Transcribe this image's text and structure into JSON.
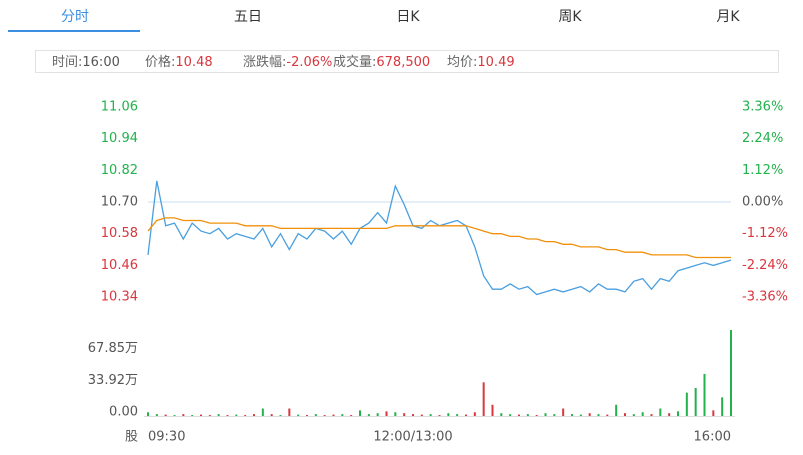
{
  "tabs": [
    "分时",
    "五日",
    "日K",
    "周K",
    "月K"
  ],
  "info": [
    {
      "label": "时间:",
      "value": "16:00"
    },
    {
      "label": "价格:",
      "value": "10.48"
    },
    {
      "label": "涨跌幅:",
      "value": "-2.06%"
    },
    {
      "label": "成交量:",
      "value": "678,500"
    },
    {
      "label": "均价:",
      "value": "10.49"
    }
  ],
  "chart_data": [
    {
      "type": "line",
      "series": [
        {
          "color": "#4a9fe0",
          "values": [
            10.5,
            10.78,
            10.61,
            10.62,
            10.56,
            10.62,
            10.59,
            10.58,
            10.6,
            10.56,
            10.58,
            10.57,
            10.56,
            10.6,
            10.53,
            10.58,
            10.52,
            10.58,
            10.56,
            10.6,
            10.59,
            10.56,
            10.59,
            10.54,
            10.6,
            10.62,
            10.66,
            10.62,
            10.76,
            10.69,
            10.61,
            10.6,
            10.63,
            10.61,
            10.62,
            10.63,
            10.61,
            10.53,
            10.42,
            10.37,
            10.37,
            10.39,
            10.37,
            10.38,
            10.35,
            10.36,
            10.37,
            10.36,
            10.37,
            10.38,
            10.36,
            10.39,
            10.37,
            10.37,
            10.36,
            10.4,
            10.41,
            10.37,
            10.41,
            10.4,
            10.44,
            10.45,
            10.46,
            10.47,
            10.46,
            10.47,
            10.48
          ]
        },
        {
          "color": "#f0900a",
          "values": [
            10.59,
            10.63,
            10.64,
            10.64,
            10.63,
            10.63,
            10.63,
            10.62,
            10.62,
            10.62,
            10.62,
            10.61,
            10.61,
            10.61,
            10.61,
            10.6,
            10.6,
            10.6,
            10.6,
            10.6,
            10.6,
            10.6,
            10.6,
            10.6,
            10.6,
            10.6,
            10.6,
            10.6,
            10.61,
            10.61,
            10.61,
            10.61,
            10.61,
            10.61,
            10.61,
            10.61,
            10.61,
            10.6,
            10.59,
            10.58,
            10.58,
            10.57,
            10.57,
            10.56,
            10.56,
            10.55,
            10.55,
            10.54,
            10.54,
            10.53,
            10.53,
            10.53,
            10.52,
            10.52,
            10.51,
            10.51,
            10.51,
            10.5,
            10.5,
            10.5,
            10.5,
            10.5,
            10.49,
            10.49,
            10.49,
            10.49,
            10.49
          ]
        }
      ],
      "ylim": [
        10.28,
        11.12
      ],
      "yticks": [
        11.06,
        10.94,
        10.82,
        {
          "value": 10.7,
          "label": "10.70"
        },
        10.58,
        10.46,
        10.34
      ],
      "ytick_colors": [
        "#22b14c",
        "#22b14c",
        "#22b14c",
        "#555555",
        "#d9363e",
        "#d9363e",
        "#d9363e"
      ],
      "grid": [
        false,
        false,
        false,
        true,
        false,
        false,
        false
      ],
      "grid_color": "#c8def0",
      "y2lim": [
        -3.92,
        3.92
      ],
      "y2ticks": [
        {
          "value": 3.36,
          "label": "3.36%"
        },
        {
          "value": 2.24,
          "label": "2.24%"
        },
        {
          "value": 1.12,
          "label": "1.12%"
        },
        {
          "value": 0,
          "label": "0.00%"
        },
        {
          "value": -1.12,
          "label": "-1.12%"
        },
        {
          "value": -2.24,
          "label": "-2.24%"
        },
        {
          "value": -3.36,
          "label": "-3.36%"
        }
      ],
      "y2tick_colors": [
        "#22b14c",
        "#22b14c",
        "#22b14c",
        "#555555",
        "#d9363e",
        "#d9363e",
        "#d9363e"
      ]
    },
    {
      "type": "bar",
      "categories": [
        "09:30",
        null,
        null,
        null,
        null,
        null,
        null,
        null,
        null,
        null,
        null,
        null,
        null,
        null,
        null,
        null,
        null,
        null,
        null,
        null,
        null,
        null,
        null,
        null,
        null,
        null,
        null,
        null,
        null,
        null,
        "12:00/13:00",
        null,
        null,
        null,
        null,
        null,
        null,
        null,
        null,
        null,
        null,
        null,
        null,
        null,
        null,
        null,
        null,
        null,
        null,
        null,
        null,
        null,
        null,
        null,
        null,
        null,
        null,
        null,
        null,
        null,
        null,
        null,
        null,
        null,
        null,
        null,
        "16:00"
      ],
      "values": [
        4,
        2,
        1.5,
        1,
        2,
        1,
        1.5,
        1,
        2,
        1,
        1.5,
        1,
        2,
        8,
        2,
        1,
        8,
        1.5,
        1,
        2,
        1,
        1.5,
        2,
        1,
        6,
        2,
        3,
        5,
        4,
        3,
        2,
        1.5,
        2,
        1,
        3,
        2,
        1.5,
        4,
        36,
        12,
        3,
        2,
        1.5,
        2,
        1,
        3,
        2,
        8,
        2,
        1.5,
        3,
        2,
        1.5,
        12,
        3,
        2,
        4,
        2,
        8,
        3,
        5,
        25,
        30,
        45,
        6,
        20,
        92
      ],
      "ylim": [
        0,
        92
      ],
      "yticks": [
        {
          "value": 67.85,
          "label": "67.85万"
        },
        {
          "value": 33.92,
          "label": "33.92万"
        },
        {
          "value": 0,
          "label": "0.00"
        }
      ],
      "up_color": "#22b14c",
      "down_color": "#d9363e",
      "unit_label": "股"
    }
  ]
}
